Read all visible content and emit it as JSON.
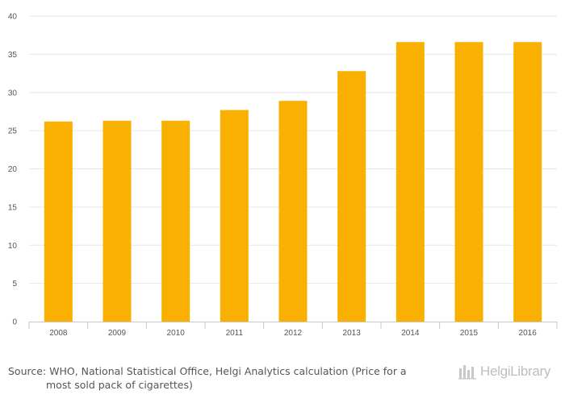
{
  "chart_data": {
    "type": "bar",
    "categories": [
      "2008",
      "2009",
      "2010",
      "2011",
      "2012",
      "2013",
      "2014",
      "2015",
      "2016"
    ],
    "values": [
      26.2,
      26.3,
      26.3,
      27.7,
      28.9,
      32.8,
      36.6,
      36.6,
      36.6
    ],
    "ylim": [
      0,
      40
    ],
    "yticks": [
      0,
      5,
      10,
      15,
      20,
      25,
      30,
      35,
      40
    ],
    "grid": true,
    "bar_color": "#F9B000"
  },
  "footer": {
    "source_line1": "Source: WHO, National Statistical Office, Helgi Analytics calculation (Price for a",
    "source_line2": "most sold pack of cigarettes)",
    "brand_name": "HelgiLibrary",
    "brand_icon": "helgi-logo-icon"
  }
}
